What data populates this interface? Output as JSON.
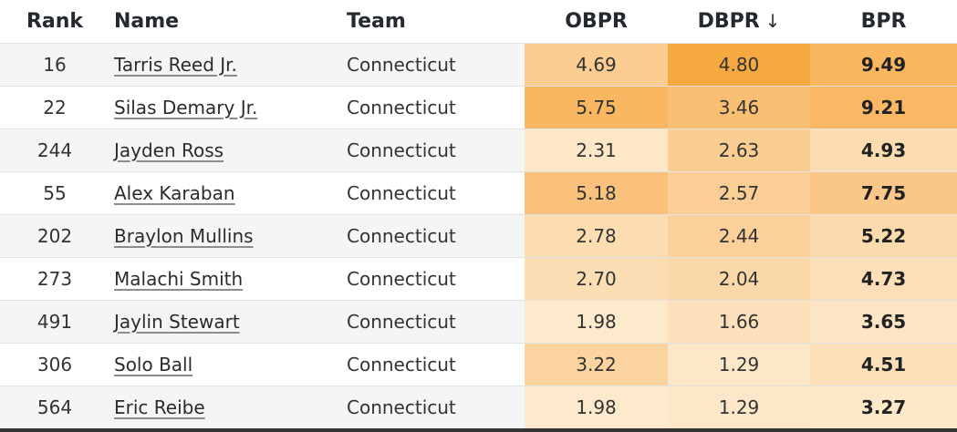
{
  "table": {
    "columns": [
      {
        "key": "rank",
        "label": "Rank"
      },
      {
        "key": "name",
        "label": "Name"
      },
      {
        "key": "team",
        "label": "Team"
      },
      {
        "key": "obpr",
        "label": "OBPR"
      },
      {
        "key": "dbpr",
        "label": "DBPR"
      },
      {
        "key": "bpr",
        "label": "BPR"
      }
    ],
    "sort": {
      "column": "dbpr",
      "direction": "desc",
      "icon": "↓"
    },
    "rows": [
      {
        "rank": "16",
        "name": "Tarris Reed Jr.",
        "team": "Connecticut",
        "obpr": "4.69",
        "dbpr": "4.80",
        "bpr": "9.49",
        "obpr_color": "#FBCD92",
        "dbpr_color": "#F6A93F",
        "bpr_color": "#F9B75F"
      },
      {
        "rank": "22",
        "name": "Silas Demary Jr.",
        "team": "Connecticut",
        "obpr": "5.75",
        "dbpr": "3.46",
        "bpr": "9.21",
        "obpr_color": "#F9B761",
        "dbpr_color": "#F9BF73",
        "bpr_color": "#F9B863"
      },
      {
        "rank": "244",
        "name": "Jayden Ross",
        "team": "Connecticut",
        "obpr": "2.31",
        "dbpr": "2.63",
        "bpr": "4.93",
        "obpr_color": "#FDE7C7",
        "dbpr_color": "#FACD92",
        "bpr_color": "#FCDDB1"
      },
      {
        "rank": "55",
        "name": "Alex Karaban",
        "team": "Connecticut",
        "obpr": "5.18",
        "dbpr": "2.57",
        "bpr": "7.75",
        "obpr_color": "#FAC17C",
        "dbpr_color": "#FACE95",
        "bpr_color": "#FAC788"
      },
      {
        "rank": "202",
        "name": "Braylon Mullins",
        "team": "Connecticut",
        "obpr": "2.78",
        "dbpr": "2.44",
        "bpr": "5.22",
        "obpr_color": "#FCDDB2",
        "dbpr_color": "#FBD09A",
        "bpr_color": "#FBDBAE"
      },
      {
        "rank": "273",
        "name": "Malachi Smith",
        "team": "Connecticut",
        "obpr": "2.70",
        "dbpr": "2.04",
        "bpr": "4.73",
        "obpr_color": "#FCDEB5",
        "dbpr_color": "#FBD8A9",
        "bpr_color": "#FCDFB8"
      },
      {
        "rank": "491",
        "name": "Jaylin Stewart",
        "team": "Connecticut",
        "obpr": "1.98",
        "dbpr": "1.66",
        "bpr": "3.65",
        "obpr_color": "#FDE9CC",
        "dbpr_color": "#FCE0BB",
        "bpr_color": "#FCE5C4"
      },
      {
        "rank": "306",
        "name": "Solo Ball",
        "team": "Connecticut",
        "obpr": "3.22",
        "dbpr": "1.29",
        "bpr": "4.51",
        "obpr_color": "#FBD49F",
        "dbpr_color": "#FDE7C9",
        "bpr_color": "#FBE0BA"
      },
      {
        "rank": "564",
        "name": "Eric Reibe",
        "team": "Connecticut",
        "obpr": "1.98",
        "dbpr": "1.29",
        "bpr": "3.27",
        "obpr_color": "#FDE9CC",
        "dbpr_color": "#FDE7C9",
        "bpr_color": "#FDE8C9"
      }
    ]
  }
}
